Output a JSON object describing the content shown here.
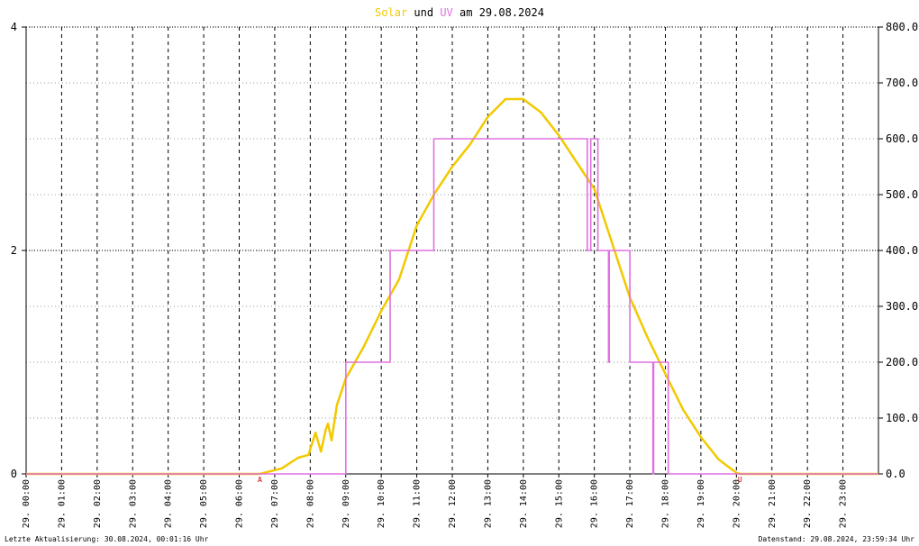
{
  "chart_data": {
    "type": "line",
    "title_joiner": "und",
    "title_suffix": "am 29.08.2024",
    "xlim": [
      0,
      24
    ],
    "xticks": [
      {
        "value": 0,
        "label": "29. 00:00"
      },
      {
        "value": 1,
        "label": "29. 01:00"
      },
      {
        "value": 2,
        "label": "29. 02:00"
      },
      {
        "value": 3,
        "label": "29. 03:00"
      },
      {
        "value": 4,
        "label": "29. 04:00"
      },
      {
        "value": 5,
        "label": "29. 05:00"
      },
      {
        "value": 6,
        "label": "29. 06:00"
      },
      {
        "value": 7,
        "label": "29. 07:00"
      },
      {
        "value": 8,
        "label": "29. 08:00"
      },
      {
        "value": 9,
        "label": "29. 09:00"
      },
      {
        "value": 10,
        "label": "29. 10:00"
      },
      {
        "value": 11,
        "label": "29. 11:00"
      },
      {
        "value": 12,
        "label": "29. 12:00"
      },
      {
        "value": 13,
        "label": "29. 13:00"
      },
      {
        "value": 14,
        "label": "29. 14:00"
      },
      {
        "value": 15,
        "label": "29. 15:00"
      },
      {
        "value": 16,
        "label": "29. 16:00"
      },
      {
        "value": 17,
        "label": "29. 17:00"
      },
      {
        "value": 18,
        "label": "29. 18:00"
      },
      {
        "value": 19,
        "label": "29. 19:00"
      },
      {
        "value": 20,
        "label": "29. 20:00"
      },
      {
        "value": 21,
        "label": "29. 21:00"
      },
      {
        "value": 22,
        "label": "29. 22:00"
      },
      {
        "value": 23,
        "label": "29. 23:00"
      }
    ],
    "ylim": [
      0,
      4
    ],
    "yticks": [
      0,
      2,
      4
    ],
    "y2lim": [
      0,
      800
    ],
    "y2ticks": [
      {
        "value": 0,
        "label": "0.0"
      },
      {
        "value": 100,
        "label": "100.0"
      },
      {
        "value": 200,
        "label": "200.0"
      },
      {
        "value": 300,
        "label": "300.0"
      },
      {
        "value": 400,
        "label": "400.0"
      },
      {
        "value": 500,
        "label": "500.0"
      },
      {
        "value": 600,
        "label": "600.0"
      },
      {
        "value": 700,
        "label": "700.0"
      },
      {
        "value": 800,
        "label": "800.0"
      }
    ],
    "grid": true,
    "series": [
      {
        "name": "Solar",
        "color": "#f2c900",
        "axis": "y2",
        "x": [
          0,
          6.58,
          7.2,
          7.66,
          7.95,
          8.15,
          8.3,
          8.44,
          8.5,
          8.6,
          8.75,
          9.0,
          9.5,
          10.0,
          10.5,
          11.0,
          11.5,
          12.0,
          12.5,
          13.0,
          13.5,
          14.0,
          14.5,
          15.0,
          15.5,
          16.0,
          16.5,
          17.0,
          17.5,
          18.0,
          18.5,
          19.0,
          19.5,
          20.0,
          20.1,
          24
        ],
        "values": [
          0,
          0,
          10,
          29,
          34,
          74,
          40,
          80,
          90,
          60,
          123,
          171,
          227,
          292,
          348,
          445,
          502,
          550,
          590,
          639,
          671,
          671,
          647,
          606,
          558,
          510,
          413,
          316,
          244,
          179,
          115,
          66,
          26,
          2,
          0,
          0
        ]
      },
      {
        "name": "UV",
        "color": "#e070e0",
        "axis": "y",
        "x": [
          0,
          9.0,
          9.0,
          10.25,
          10.25,
          11.48,
          11.48,
          15.8,
          15.8,
          15.9,
          15.9,
          16.1,
          16.1,
          16.4,
          16.4,
          16.42,
          16.42,
          17.0,
          17.0,
          17.65,
          17.65,
          17.67,
          17.67,
          18.08,
          18.08,
          24
        ],
        "values": [
          0,
          0,
          1,
          1,
          2,
          2,
          3,
          3,
          2,
          2,
          3,
          3,
          2,
          2,
          1,
          1,
          2,
          2,
          1,
          1,
          0,
          0,
          1,
          1,
          0,
          0
        ]
      }
    ],
    "annotations": [
      {
        "x": 6.58,
        "text": "A"
      },
      {
        "x": 20.1,
        "text": "U"
      }
    ],
    "footer_left": "Letzte Aktualisierung: 30.08.2024, 00:01:16 Uhr",
    "footer_right": "Datenstand: 29.08.2024, 23:59:34 Uhr"
  }
}
